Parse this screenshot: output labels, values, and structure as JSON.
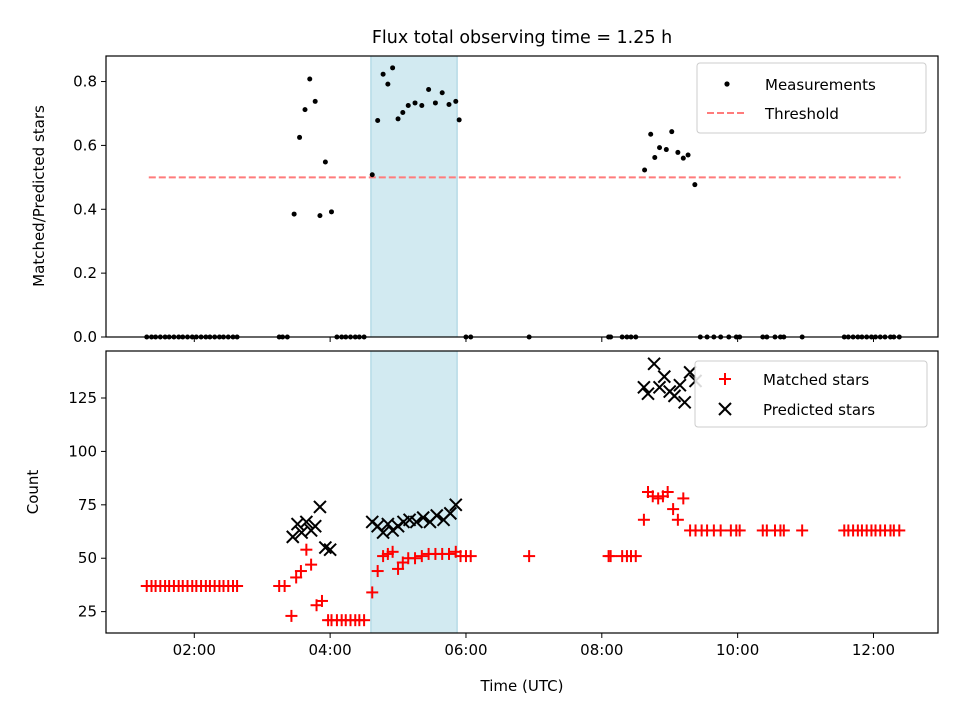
{
  "figure": {
    "title": "Flux total observing time = 1.25 h",
    "xlabel": "Time (UTC)",
    "x_tick_labels": [
      "02:00",
      "04:00",
      "06:00",
      "08:00",
      "10:00",
      "12:00"
    ],
    "x_ticks_hours": [
      2,
      4,
      6,
      8,
      10,
      12
    ],
    "shaded_interval_hours": [
      4.6,
      5.87
    ],
    "colors": {
      "shade": "#add8e6",
      "measurements": "#000000",
      "threshold": "#ff7b7b",
      "matched": "#ff0000",
      "predicted": "#000000"
    }
  },
  "chart_data": [
    {
      "type": "scatter",
      "ylabel": "Matched/Predicted stars",
      "xlim_hours": [
        0.7,
        12.95
      ],
      "ylim": [
        0.0,
        0.88
      ],
      "y_ticks": [
        0.0,
        0.2,
        0.4,
        0.6,
        0.8
      ],
      "y_tick_labels": [
        "0.0",
        "0.2",
        "0.4",
        "0.6",
        "0.8"
      ],
      "legend_position": "upper right",
      "legend": [
        "Measurements",
        "Threshold"
      ],
      "threshold": {
        "name": "Threshold",
        "y": 0.5,
        "x_start": 1.33,
        "x_end": 12.4
      },
      "series": [
        {
          "name": "Measurements",
          "x_hours": [
            1.3,
            1.37,
            1.43,
            1.5,
            1.57,
            1.63,
            1.7,
            1.77,
            1.83,
            1.9,
            1.97,
            2.03,
            2.1,
            2.17,
            2.23,
            2.3,
            2.37,
            2.43,
            2.5,
            2.57,
            2.63,
            3.25,
            3.3,
            3.37,
            3.47,
            3.55,
            3.63,
            3.7,
            3.78,
            3.85,
            3.93,
            4.02,
            4.1,
            4.17,
            4.23,
            4.3,
            4.37,
            4.43,
            4.5,
            4.62,
            4.7,
            4.78,
            4.85,
            4.92,
            5.0,
            5.07,
            5.15,
            5.25,
            5.35,
            5.45,
            5.55,
            5.65,
            5.75,
            5.85,
            5.9,
            6.0,
            6.07,
            6.93,
            8.1,
            8.13,
            8.3,
            8.37,
            8.43,
            8.5,
            8.63,
            8.72,
            8.78,
            8.85,
            8.95,
            9.03,
            9.12,
            9.2,
            9.27,
            9.37,
            9.45,
            9.55,
            9.65,
            9.75,
            9.87,
            9.98,
            10.03,
            10.37,
            10.43,
            10.55,
            10.63,
            10.68,
            10.95,
            11.57,
            11.63,
            11.7,
            11.77,
            11.83,
            11.9,
            11.97,
            12.03,
            12.1,
            12.17,
            12.25,
            12.3,
            12.38
          ],
          "y": [
            0,
            0,
            0,
            0,
            0,
            0,
            0,
            0,
            0,
            0,
            0,
            0,
            0,
            0,
            0,
            0,
            0,
            0,
            0,
            0,
            0,
            0,
            0,
            0,
            0.385,
            0.625,
            0.712,
            0.808,
            0.738,
            0.38,
            0.548,
            0.392,
            0,
            0,
            0,
            0,
            0,
            0,
            0,
            0.508,
            0.678,
            0.823,
            0.792,
            0.843,
            0.683,
            0.703,
            0.725,
            0.733,
            0.725,
            0.775,
            0.733,
            0.765,
            0.728,
            0.738,
            0.68,
            0,
            0,
            0,
            0,
            0,
            0,
            0,
            0,
            0,
            0.523,
            0.635,
            0.562,
            0.593,
            0.587,
            0.643,
            0.578,
            0.56,
            0.57,
            0.477,
            0,
            0,
            0,
            0,
            0,
            0,
            0,
            0,
            0,
            0,
            0,
            0,
            0,
            0,
            0,
            0,
            0,
            0,
            0,
            0,
            0,
            0,
            0,
            0,
            0,
            0
          ]
        }
      ]
    },
    {
      "type": "scatter",
      "ylabel": "Count",
      "xlim_hours": [
        0.7,
        12.95
      ],
      "ylim": [
        15,
        147
      ],
      "y_ticks": [
        25,
        50,
        75,
        100,
        125
      ],
      "y_tick_labels": [
        "25",
        "50",
        "75",
        "100",
        "125"
      ],
      "legend_position": "upper right",
      "legend": [
        "Matched stars",
        "Predicted stars"
      ],
      "series": [
        {
          "name": "Matched stars",
          "marker": "+",
          "x_hours": [
            1.3,
            1.37,
            1.43,
            1.5,
            1.57,
            1.63,
            1.7,
            1.77,
            1.83,
            1.9,
            1.97,
            2.03,
            2.1,
            2.17,
            2.23,
            2.3,
            2.37,
            2.43,
            2.5,
            2.57,
            2.63,
            3.25,
            3.33,
            3.43,
            3.5,
            3.57,
            3.65,
            3.72,
            3.8,
            3.88,
            3.97,
            4.02,
            4.1,
            4.17,
            4.23,
            4.3,
            4.37,
            4.43,
            4.5,
            4.62,
            4.7,
            4.78,
            4.85,
            4.92,
            5.0,
            5.07,
            5.15,
            5.25,
            5.35,
            5.45,
            5.55,
            5.65,
            5.75,
            5.85,
            5.92,
            6.0,
            6.07,
            6.93,
            8.1,
            8.13,
            8.3,
            8.37,
            8.43,
            8.5,
            8.62,
            8.68,
            8.75,
            8.83,
            8.9,
            8.97,
            9.05,
            9.12,
            9.2,
            9.3,
            9.38,
            9.47,
            9.55,
            9.65,
            9.75,
            9.9,
            9.98,
            10.03,
            10.37,
            10.43,
            10.55,
            10.63,
            10.68,
            10.95,
            11.57,
            11.63,
            11.7,
            11.77,
            11.83,
            11.9,
            11.97,
            12.03,
            12.1,
            12.17,
            12.25,
            12.3,
            12.38
          ],
          "y": [
            37,
            37,
            37,
            37,
            37,
            37,
            37,
            37,
            37,
            37,
            37,
            37,
            37,
            37,
            37,
            37,
            37,
            37,
            37,
            37,
            37,
            37,
            37,
            23,
            41,
            44,
            54,
            47,
            28,
            30,
            21,
            21,
            21,
            21,
            21,
            21,
            21,
            21,
            21,
            34,
            44,
            51,
            52,
            53,
            45,
            48,
            50,
            50,
            51,
            52,
            52,
            52,
            52,
            53,
            51,
            51,
            51,
            51,
            51,
            51,
            51,
            51,
            51,
            51,
            68,
            81,
            79,
            78,
            79,
            81,
            73,
            68,
            78,
            63,
            63,
            63,
            63,
            63,
            63,
            63,
            63,
            63,
            63,
            63,
            63,
            63,
            63,
            63,
            63,
            63,
            63,
            63,
            63,
            63,
            63,
            63,
            63,
            63,
            63,
            63,
            63
          ]
        },
        {
          "name": "Predicted stars",
          "marker": "x",
          "x_hours": [
            3.45,
            3.52,
            3.58,
            3.65,
            3.72,
            3.78,
            3.85,
            3.93,
            4.0,
            4.62,
            4.7,
            4.78,
            4.85,
            4.92,
            5.0,
            5.08,
            5.17,
            5.27,
            5.37,
            5.47,
            5.57,
            5.67,
            5.77,
            5.85,
            8.62,
            8.68,
            8.77,
            8.85,
            8.92,
            9.0,
            9.07,
            9.15,
            9.22,
            9.3,
            9.38
          ],
          "y": [
            60,
            66,
            62,
            67,
            63,
            65,
            74,
            55,
            54,
            67,
            65,
            62,
            66,
            63,
            65,
            67,
            68,
            67,
            69,
            67,
            70,
            68,
            71,
            75,
            130,
            127,
            141,
            130,
            135,
            128,
            126,
            131,
            123,
            137,
            133
          ]
        }
      ]
    }
  ]
}
